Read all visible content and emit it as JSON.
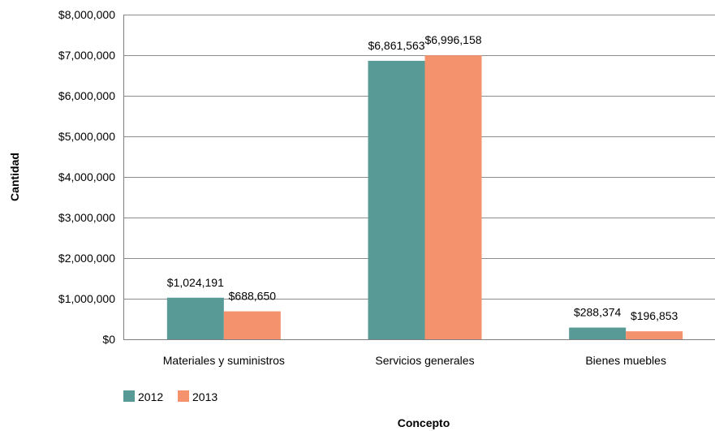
{
  "chart_data": {
    "type": "bar",
    "title": "",
    "xlabel": "Concepto",
    "ylabel": "Cantidad",
    "categories": [
      "Materiales y suministros",
      "Servicios generales",
      "Bienes muebles"
    ],
    "series": [
      {
        "name": "2012",
        "color": "#579a96",
        "values": [
          1024191,
          6861563,
          288374
        ],
        "labels": [
          "$1,024,191",
          "$6,861,563",
          "$288,374"
        ]
      },
      {
        "name": "2013",
        "color": "#f4926d",
        "values": [
          688650,
          6996158,
          196853
        ],
        "labels": [
          "$688,650",
          "$6,996,158",
          "$196,853"
        ]
      }
    ],
    "ylim": [
      0,
      8000000
    ],
    "yticks": [
      0,
      1000000,
      2000000,
      3000000,
      4000000,
      5000000,
      6000000,
      7000000,
      8000000
    ],
    "ytick_labels": [
      "$0",
      "$1,000,000",
      "$2,000,000",
      "$3,000,000",
      "$4,000,000",
      "$5,000,000",
      "$6,000,000",
      "$7,000,000",
      "$8,000,000"
    ],
    "grid": true,
    "legend_position": "bottom-left"
  }
}
